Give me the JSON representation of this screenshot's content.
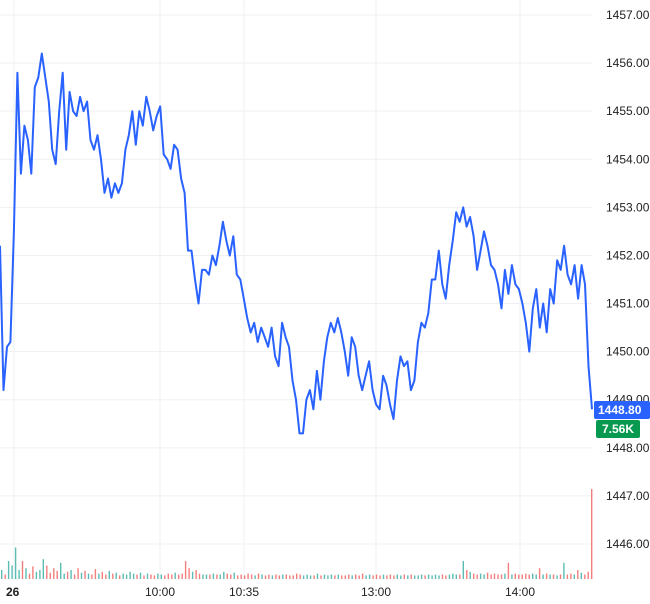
{
  "chart_data": {
    "type": "line",
    "price_ticks": [
      "1446.00",
      "1447.00",
      "1448.00",
      "1449.00",
      "1450.00",
      "1451.00",
      "1452.00",
      "1453.00",
      "1454.00",
      "1455.00",
      "1456.00",
      "1457.00"
    ],
    "ylim": [
      1445.6,
      1457.3
    ],
    "x_ticks": [
      "26",
      "10:00",
      "10:35",
      "13:00",
      "14:00"
    ],
    "last_price_label": "1448.80",
    "last_volume_label": "7.56K",
    "colors": {
      "line": "#2962ff",
      "price_badge": "#2962ff",
      "volume_badge": "#089950",
      "up_volume": "#26a69a",
      "down_volume": "#ef5350",
      "grid": "#eef0f3"
    },
    "price_series": [
      1452.2,
      1449.2,
      1450.1,
      1450.2,
      1452.5,
      1455.8,
      1453.7,
      1454.7,
      1454.4,
      1453.7,
      1455.5,
      1455.7,
      1456.2,
      1455.7,
      1455.2,
      1454.2,
      1453.9,
      1455.0,
      1455.8,
      1454.2,
      1455.4,
      1455.0,
      1454.9,
      1455.3,
      1455.0,
      1455.2,
      1454.4,
      1454.2,
      1454.5,
      1454.0,
      1453.3,
      1453.6,
      1453.2,
      1453.5,
      1453.3,
      1453.5,
      1454.2,
      1454.5,
      1455.0,
      1454.3,
      1455.0,
      1454.7,
      1455.3,
      1455.0,
      1454.6,
      1454.9,
      1455.1,
      1454.1,
      1454.0,
      1453.8,
      1454.3,
      1454.2,
      1453.6,
      1453.3,
      1452.1,
      1452.1,
      1451.5,
      1451.0,
      1451.7,
      1451.7,
      1451.6,
      1452.0,
      1451.8,
      1452.2,
      1452.7,
      1452.3,
      1452.0,
      1452.4,
      1451.6,
      1451.5,
      1451.1,
      1450.7,
      1450.4,
      1450.6,
      1450.2,
      1450.5,
      1450.3,
      1450.1,
      1450.5,
      1449.9,
      1449.7,
      1450.6,
      1450.3,
      1450.1,
      1449.4,
      1449.0,
      1448.3,
      1448.3,
      1449.0,
      1449.2,
      1448.8,
      1449.6,
      1449.0,
      1449.8,
      1450.3,
      1450.6,
      1450.4,
      1450.7,
      1450.4,
      1450.0,
      1449.5,
      1450.3,
      1450.1,
      1449.5,
      1449.2,
      1449.5,
      1449.8,
      1449.2,
      1448.9,
      1448.8,
      1449.5,
      1449.3,
      1448.9,
      1448.6,
      1449.4,
      1449.9,
      1449.7,
      1449.8,
      1449.2,
      1449.4,
      1450.2,
      1450.6,
      1450.5,
      1450.8,
      1451.5,
      1451.5,
      1452.1,
      1451.4,
      1451.1,
      1451.8,
      1452.3,
      1452.9,
      1452.7,
      1453.0,
      1452.6,
      1452.8,
      1452.4,
      1451.7,
      1452.1,
      1452.5,
      1452.2,
      1451.8,
      1451.7,
      1451.4,
      1450.9,
      1451.7,
      1451.2,
      1451.8,
      1451.4,
      1451.3,
      1451.0,
      1450.6,
      1450.0,
      1450.9,
      1451.3,
      1450.5,
      1451.0,
      1450.4,
      1451.3,
      1451.0,
      1451.9,
      1451.7,
      1452.2,
      1451.6,
      1451.4,
      1451.8,
      1451.1,
      1451.8,
      1451.4,
      1449.7,
      1448.8
    ],
    "volume_series": [
      0.1,
      0.05,
      0.2,
      0.15,
      0.35,
      0.1,
      0.2,
      0.12,
      0.06,
      0.14,
      0.08,
      0.1,
      0.22,
      0.15,
      0.07,
      0.12,
      0.09,
      0.18,
      0.06,
      0.08,
      0.1,
      0.05,
      0.12,
      0.07,
      0.09,
      0.06,
      0.05,
      0.11,
      0.06,
      0.08,
      0.05,
      0.09,
      0.06,
      0.07,
      0.04,
      0.06,
      0.05,
      0.08,
      0.06,
      0.05,
      0.07,
      0.04,
      0.06,
      0.05,
      0.04,
      0.06,
      0.05,
      0.04,
      0.06,
      0.05,
      0.07,
      0.05,
      0.06,
      0.2,
      0.12,
      0.08,
      0.1,
      0.06,
      0.05,
      0.05,
      0.05,
      0.06,
      0.05,
      0.05,
      0.08,
      0.06,
      0.05,
      0.07,
      0.04,
      0.05,
      0.04,
      0.06,
      0.05,
      0.04,
      0.06,
      0.05,
      0.04,
      0.05,
      0.04,
      0.05,
      0.04,
      0.05,
      0.05,
      0.04,
      0.04,
      0.06,
      0.05,
      0.04,
      0.05,
      0.04,
      0.04,
      0.06,
      0.04,
      0.05,
      0.04,
      0.05,
      0.04,
      0.05,
      0.04,
      0.04,
      0.05,
      0.04,
      0.05,
      0.04,
      0.06,
      0.04,
      0.05,
      0.04,
      0.05,
      0.04,
      0.05,
      0.04,
      0.05,
      0.04,
      0.05,
      0.04,
      0.05,
      0.04,
      0.05,
      0.04,
      0.04,
      0.05,
      0.04,
      0.05,
      0.04,
      0.05,
      0.04,
      0.05,
      0.04,
      0.05,
      0.06,
      0.05,
      0.05,
      0.2,
      0.1,
      0.08,
      0.06,
      0.05,
      0.06,
      0.05,
      0.07,
      0.05,
      0.06,
      0.05,
      0.05,
      0.06,
      0.18,
      0.05,
      0.06,
      0.05,
      0.05,
      0.06,
      0.05,
      0.06,
      0.05,
      0.12,
      0.05,
      0.06,
      0.05,
      0.05,
      0.04,
      0.05,
      0.18,
      0.05,
      0.06,
      0.05,
      0.1,
      0.07,
      0.05,
      0.08,
      1.0
    ]
  }
}
